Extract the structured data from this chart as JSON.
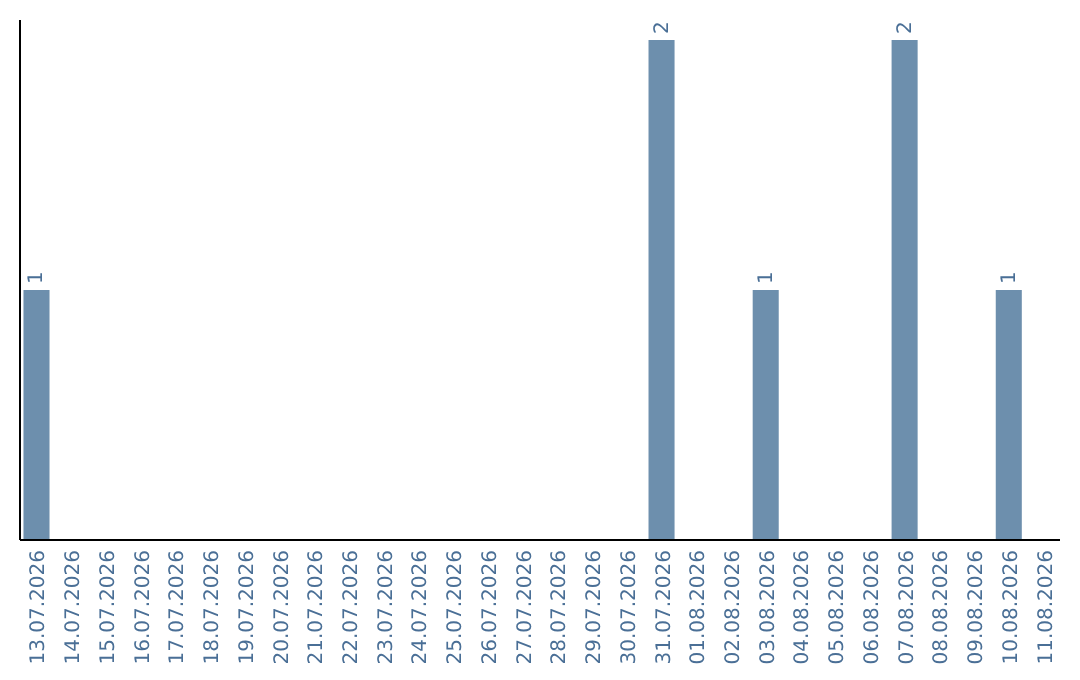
{
  "chart_data": {
    "type": "bar",
    "categories": [
      "13.07.2026",
      "14.07.2026",
      "15.07.2026",
      "16.07.2026",
      "17.07.2026",
      "18.07.2026",
      "19.07.2026",
      "20.07.2026",
      "21.07.2026",
      "22.07.2026",
      "23.07.2026",
      "24.07.2026",
      "25.07.2026",
      "26.07.2026",
      "27.07.2026",
      "28.07.2026",
      "29.07.2026",
      "30.07.2026",
      "31.07.2026",
      "01.08.2026",
      "02.08.2026",
      "03.08.2026",
      "04.08.2026",
      "05.08.2026",
      "06.08.2026",
      "07.08.2026",
      "08.08.2026",
      "09.08.2026",
      "10.08.2026",
      "11.08.2026"
    ],
    "values": [
      1,
      0,
      0,
      0,
      0,
      0,
      0,
      0,
      0,
      0,
      0,
      0,
      0,
      0,
      0,
      0,
      0,
      0,
      2,
      0,
      0,
      1,
      0,
      0,
      0,
      2,
      0,
      0,
      1,
      0
    ],
    "value_labels": [
      "1",
      null,
      null,
      null,
      null,
      null,
      null,
      null,
      null,
      null,
      null,
      null,
      null,
      null,
      null,
      null,
      null,
      null,
      "2",
      null,
      null,
      "1",
      null,
      null,
      null,
      "2",
      null,
      null,
      "1",
      null
    ],
    "color": "#6d8fad",
    "tick_labels": "x"
  }
}
